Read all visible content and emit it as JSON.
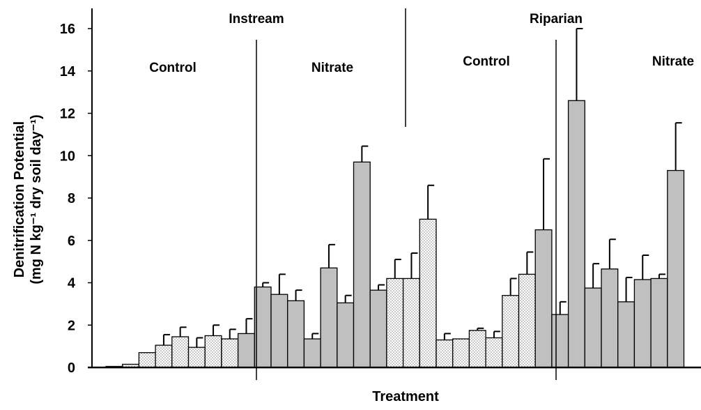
{
  "chart_data": {
    "type": "bar",
    "title": "",
    "xlabel": "Treatment",
    "ylabel": "Denitrification Potential",
    "ylabel_line2": "(mg N kg⁻¹ dry soil day⁻¹)",
    "ylim": [
      0,
      16
    ],
    "yticks": [
      0,
      2,
      4,
      6,
      8,
      10,
      12,
      14,
      16
    ],
    "grid": false,
    "legend": "none",
    "group_labels": {
      "top": [
        "Instream",
        "Riparian"
      ],
      "sub": [
        "Control",
        "Nitrate",
        "Control",
        "Nitrate"
      ]
    },
    "groups": [
      {
        "section": "Instream",
        "treatment": "Control",
        "pattern": "dotted",
        "values": [
          0.05,
          0.15,
          0.7,
          1.05,
          1.45,
          0.95,
          1.5,
          1.35
        ],
        "errors": [
          0,
          0,
          0,
          0.5,
          0.45,
          0.45,
          0.5,
          0.45
        ]
      },
      {
        "section": "Instream",
        "treatment": "Nitrate",
        "pattern": "solid",
        "values": [
          1.6,
          3.8,
          3.45,
          3.15,
          1.35,
          4.7,
          3.05,
          9.7,
          3.65
        ],
        "errors": [
          0.7,
          0.2,
          0.95,
          0.5,
          0.25,
          1.1,
          0.35,
          0.75,
          0.25
        ]
      },
      {
        "section": "Riparian",
        "treatment": "Control",
        "pattern": "dotted",
        "values": [
          4.2,
          4.2,
          7.0,
          1.3,
          1.35,
          1.75,
          1.4,
          3.4,
          4.4
        ],
        "errors": [
          0.9,
          1.2,
          1.6,
          0.3,
          0,
          0.1,
          0.3,
          0.8,
          1.05
        ]
      },
      {
        "section": "Riparian",
        "treatment": "Nitrate",
        "pattern": "solid",
        "values": [
          6.5,
          2.5,
          12.6,
          3.75,
          4.65,
          3.1,
          4.15,
          4.2,
          9.3
        ],
        "errors": [
          3.35,
          0.6,
          3.4,
          1.15,
          1.4,
          1.15,
          1.15,
          0.2,
          2.25
        ]
      }
    ]
  },
  "colors": {
    "solid_fill": "#c0c0c0",
    "dotted_bg": "#ffffff",
    "dotted_dot": "#808080",
    "outline": "#000000"
  }
}
